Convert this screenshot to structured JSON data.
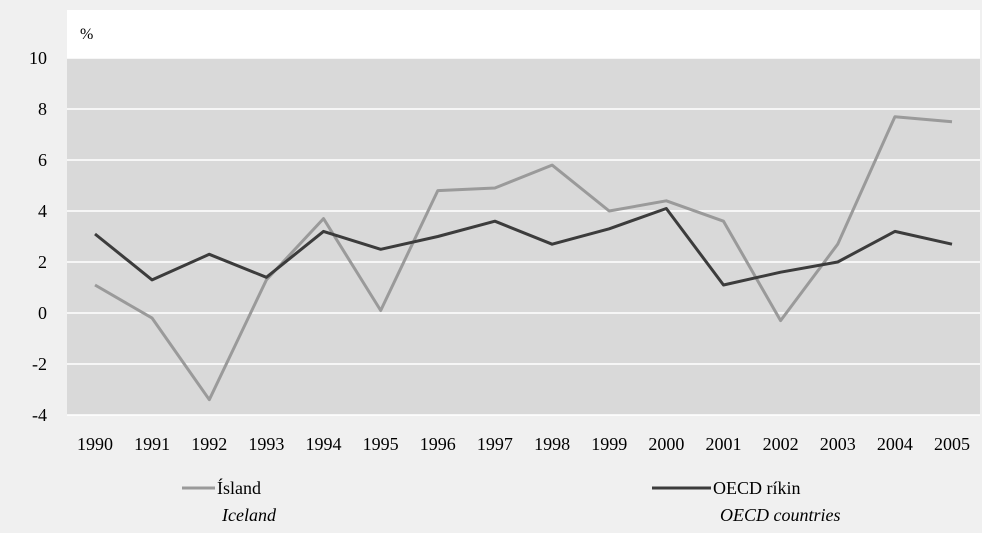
{
  "chart_data": {
    "type": "line",
    "ylabel": "%",
    "ylim": [
      -4,
      10
    ],
    "yticks": [
      "10",
      "8",
      "6",
      "4",
      "2",
      "0",
      "-2",
      "-4"
    ],
    "categories": [
      "1990",
      "1991",
      "1992",
      "1993",
      "1994",
      "1995",
      "1996",
      "1997",
      "1998",
      "1999",
      "2000",
      "2001",
      "2002",
      "2003",
      "2004",
      "2005"
    ],
    "grid": true,
    "legend_position": "bottom",
    "series": [
      {
        "name": "Ísland",
        "subtitle": "Iceland",
        "color": "#9a9a9a",
        "values": [
          1.1,
          -0.2,
          -3.4,
          1.3,
          3.7,
          0.1,
          4.8,
          4.9,
          5.8,
          4.0,
          4.4,
          3.6,
          -0.3,
          2.7,
          7.7,
          7.5
        ]
      },
      {
        "name": "OECD ríkin",
        "subtitle": "OECD countries",
        "color": "#3c3c3c",
        "values": [
          3.1,
          1.3,
          2.3,
          1.4,
          3.2,
          2.5,
          3.0,
          3.6,
          2.7,
          3.3,
          4.1,
          1.1,
          1.6,
          2.0,
          3.2,
          2.7
        ]
      }
    ]
  }
}
